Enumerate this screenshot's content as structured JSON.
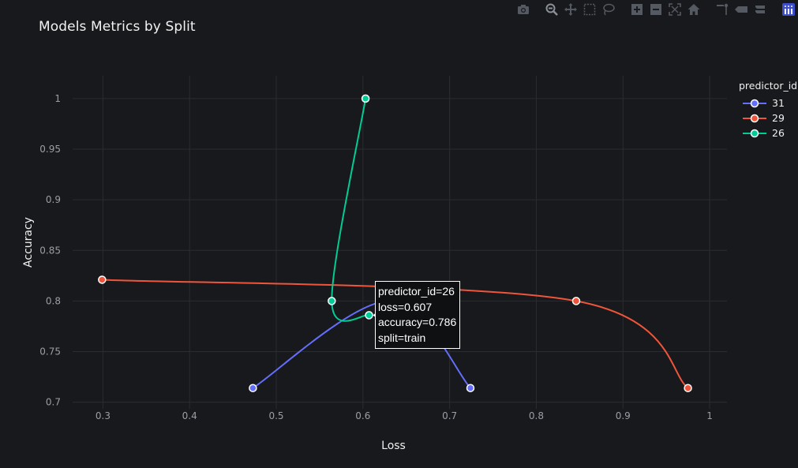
{
  "toolbar": {
    "buttons": [
      {
        "name": "camera-icon",
        "label": "Download plot as a png"
      },
      {
        "name": "zoom-icon",
        "label": "Zoom"
      },
      {
        "name": "pan-icon",
        "label": "Pan"
      },
      {
        "name": "box-select-icon",
        "label": "Box Select"
      },
      {
        "name": "lasso-select-icon",
        "label": "Lasso Select"
      },
      {
        "name": "zoom-in-icon",
        "label": "Zoom in"
      },
      {
        "name": "zoom-out-icon",
        "label": "Zoom out"
      },
      {
        "name": "autoscale-icon",
        "label": "Autoscale"
      },
      {
        "name": "home-icon",
        "label": "Reset axes"
      },
      {
        "name": "spike-lines-icon",
        "label": "Toggle Spike Lines"
      },
      {
        "name": "hover-closest-icon",
        "label": "Show closest data on hover"
      },
      {
        "name": "hover-compare-icon",
        "label": "Compare data on hover"
      },
      {
        "name": "plotly-logo-icon",
        "label": "Produced with Plotly"
      }
    ],
    "active": "zoom-icon"
  },
  "chart_data": {
    "type": "line",
    "title": "Models Metrics by Split",
    "xlabel": "Loss",
    "ylabel": "Accuracy",
    "xlim": [
      0.265,
      1.02
    ],
    "ylim": [
      0.6935,
      1.0225
    ],
    "x_ticks": [
      0.3,
      0.4,
      0.5,
      0.6,
      0.7,
      0.8,
      0.9,
      1
    ],
    "x_tick_labels": [
      "0.3",
      "0.4",
      "0.5",
      "0.6",
      "0.7",
      "0.8",
      "0.9",
      "1"
    ],
    "y_ticks": [
      0.7,
      0.75,
      0.8,
      0.85,
      0.9,
      0.95,
      1
    ],
    "y_tick_labels": [
      "0.7",
      "0.75",
      "0.8",
      "0.85",
      "0.9",
      "0.95",
      "1"
    ],
    "grid": true,
    "line_shape": "spline",
    "legend_title": "predictor_id",
    "legend_position": "top-right",
    "series": [
      {
        "name": "31",
        "color": "#636efa",
        "points": [
          {
            "x": 0.473,
            "y": 0.714
          },
          {
            "x": 0.63,
            "y": 0.8
          },
          {
            "x": 0.724,
            "y": 0.714
          }
        ]
      },
      {
        "name": "29",
        "color": "#ef553b",
        "points": [
          {
            "x": 0.299,
            "y": 0.821
          },
          {
            "x": 0.846,
            "y": 0.8
          },
          {
            "x": 0.975,
            "y": 0.714
          }
        ]
      },
      {
        "name": "26",
        "color": "#00cc96",
        "points": [
          {
            "x": 0.603,
            "y": 1.0
          },
          {
            "x": 0.564,
            "y": 0.8
          },
          {
            "x": 0.607,
            "y": 0.786
          }
        ]
      }
    ],
    "hover": {
      "series": "26",
      "point_index": 2,
      "lines": [
        "predictor_id=26",
        "loss=0.607",
        "accuracy=0.786",
        "split=train"
      ]
    }
  }
}
